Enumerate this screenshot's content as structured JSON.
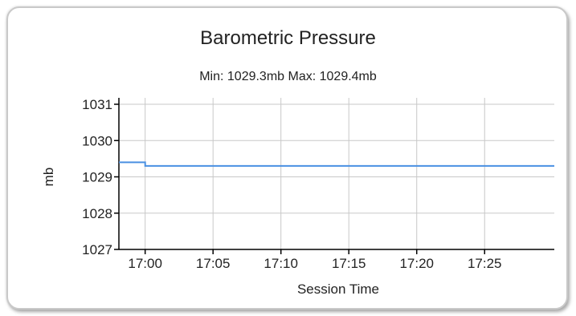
{
  "chart_data": {
    "type": "line",
    "title": "Barometric Pressure",
    "subtitle": "Min: 1029.3mb  Max: 1029.4mb",
    "xlabel": "Session Time",
    "ylabel": "mb",
    "ylim": [
      1027,
      1031
    ],
    "xlim": [
      "16:58:04",
      "17:30:08"
    ],
    "yticks": [
      1027,
      1028,
      1029,
      1030,
      1031
    ],
    "xticks": [
      "17:00",
      "17:05",
      "17:10",
      "17:15",
      "17:20",
      "17:25"
    ],
    "grid": true,
    "line_color": "#4a90e2",
    "series": [
      {
        "x": [
          "16:58:04",
          "17:00:00",
          "17:00:00",
          "17:30:08"
        ],
        "y": [
          1029.4,
          1029.4,
          1029.3,
          1029.3
        ]
      }
    ]
  }
}
